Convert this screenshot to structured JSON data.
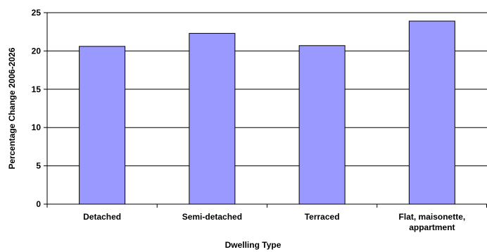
{
  "chart_data": {
    "type": "bar",
    "categories": [
      "Detached",
      "Semi-detached",
      "Terraced",
      "Flat, maisonette, appartment"
    ],
    "values": [
      20.6,
      22.3,
      20.7,
      23.9
    ],
    "title": "",
    "xlabel": "Dwelling Type",
    "ylabel": "Percentage Change 2006-2026",
    "ylim": [
      0,
      25
    ],
    "yticks": [
      0,
      5,
      10,
      15,
      20,
      25
    ],
    "grid": true,
    "legend": "none",
    "bar_color": "#9999ff",
    "bar_border_color": "#000000"
  }
}
